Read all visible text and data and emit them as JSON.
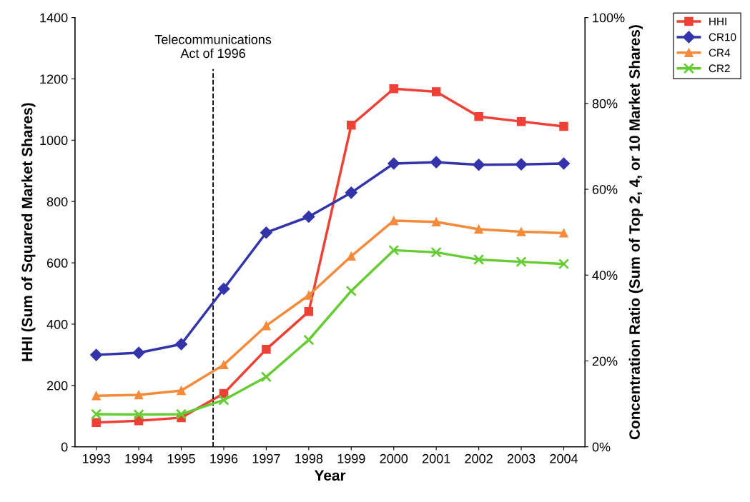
{
  "chart_data": {
    "type": "line",
    "xlabel": "Year",
    "ylabel": "HHI (Sum of Squared Market Shares)",
    "y2label": "Concentration Ratio (Sum of Top 2, 4, or 10 Market Shares)",
    "x": [
      1993,
      1994,
      1995,
      1996,
      1997,
      1998,
      1999,
      2000,
      2001,
      2002,
      2003,
      2004
    ],
    "xlim": [
      1992.5,
      2004.5
    ],
    "xticks": [
      1993,
      1994,
      1995,
      1996,
      1997,
      1998,
      1999,
      2000,
      2001,
      2002,
      2003,
      2004
    ],
    "ylim": [
      0,
      1400
    ],
    "yticks": [
      0,
      200,
      400,
      600,
      800,
      1000,
      1200,
      1400
    ],
    "y2lim": [
      0,
      100
    ],
    "y2ticks": [
      {
        "value": 0,
        "label": "0%"
      },
      {
        "value": 20,
        "label": "20%"
      },
      {
        "value": 40,
        "label": "40%"
      },
      {
        "value": 60,
        "label": "60%"
      },
      {
        "value": 80,
        "label": "80%"
      },
      {
        "value": 100,
        "label": "100%"
      }
    ],
    "series": [
      {
        "name": "HHI",
        "color": "#ee4035",
        "marker": "square",
        "values": [
          79,
          85,
          95,
          174,
          318,
          441,
          1049,
          1168,
          1158,
          1077,
          1061,
          1045
        ]
      },
      {
        "name": "CR10",
        "color": "#3333aa",
        "marker": "diamond",
        "axis": "y2",
        "values": [
          21.4,
          21.9,
          23.9,
          36.8,
          49.9,
          53.6,
          59.2,
          66.0,
          66.3,
          65.7,
          65.8,
          66.0
        ]
      },
      {
        "name": "CR4",
        "color": "#f58a3a",
        "marker": "triangle",
        "axis": "y2",
        "values": [
          11.9,
          12.1,
          13.1,
          19.1,
          28.2,
          35.3,
          44.4,
          52.7,
          52.4,
          50.7,
          50.1,
          49.8
        ]
      },
      {
        "name": "CR2",
        "color": "#66cc33",
        "marker": "cross",
        "axis": "y2",
        "values": [
          7.6,
          7.5,
          7.6,
          10.9,
          16.3,
          24.9,
          36.3,
          45.8,
          45.3,
          43.6,
          43.1,
          42.6
        ]
      }
    ],
    "ref_lines": [
      {
        "axis": "x",
        "value": 1995.75,
        "label": "Telecommunications\nAct of 1996",
        "color": "#000000",
        "line_style": "dashed"
      }
    ],
    "legend": "top right",
    "grid": false
  }
}
